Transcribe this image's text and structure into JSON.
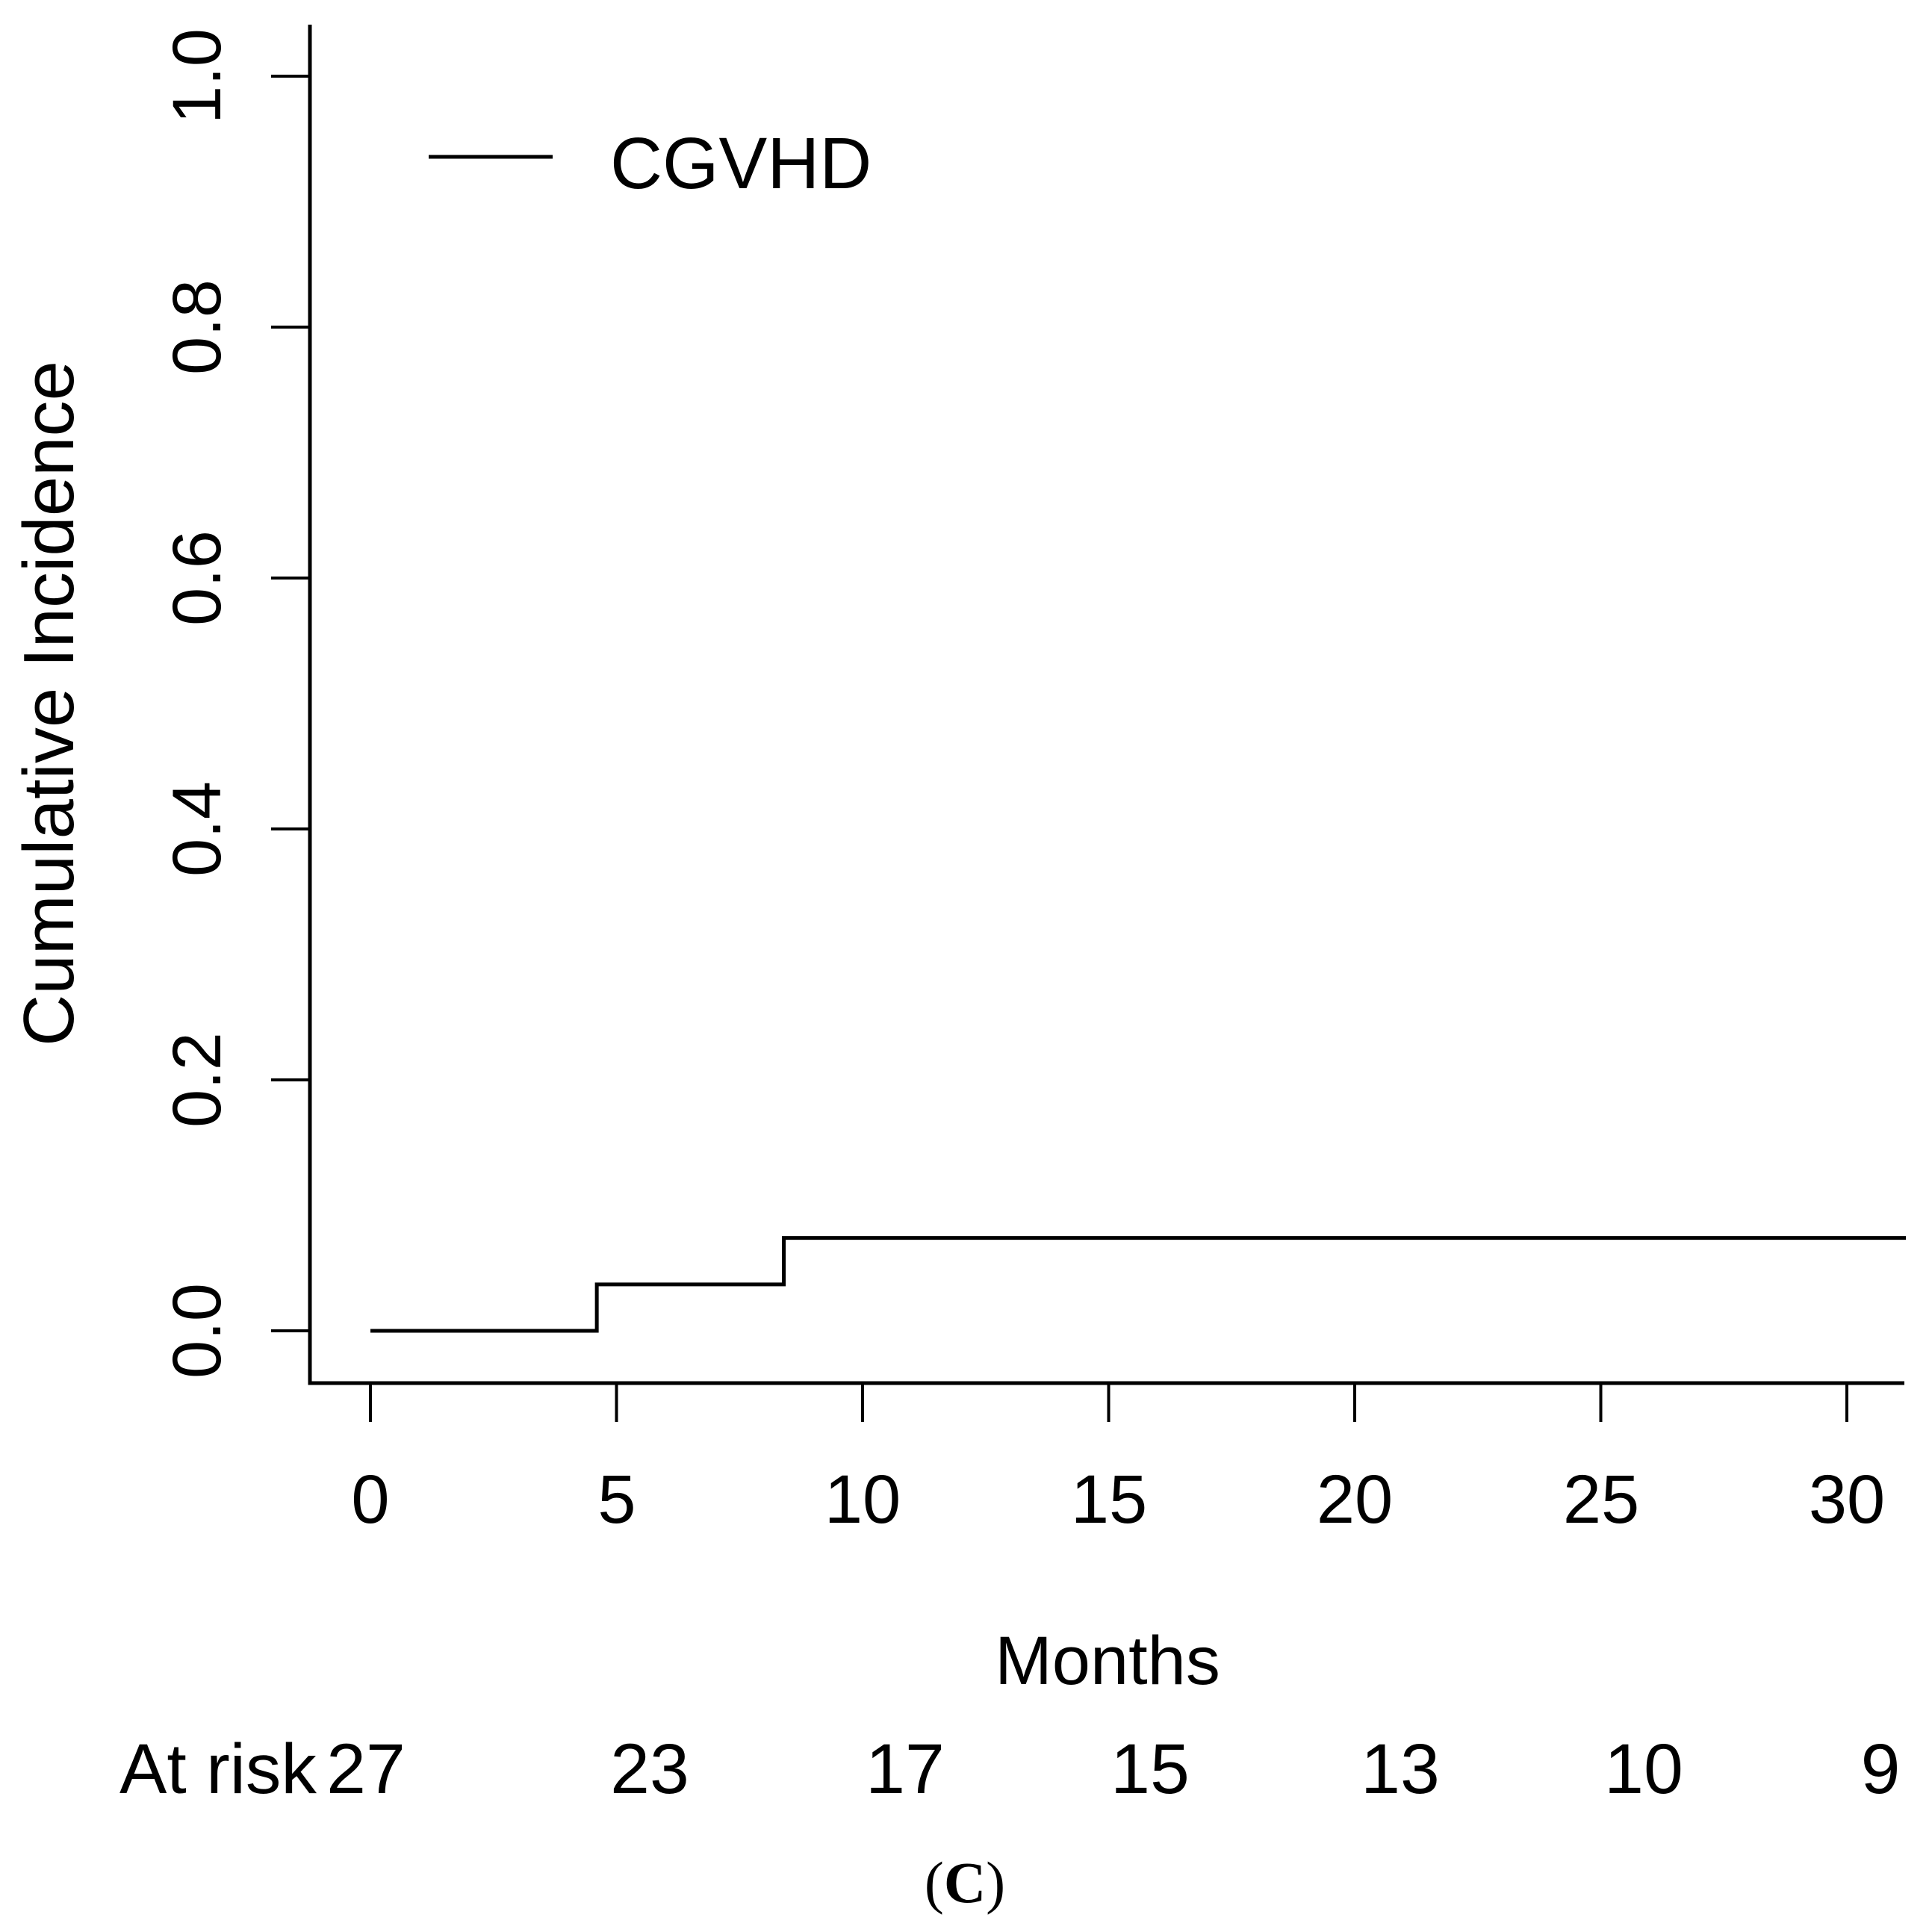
{
  "chart_data": {
    "type": "line",
    "subtype": "step-cumulative-incidence",
    "title": "",
    "xlabel": "Months",
    "ylabel": "Cumulative Incidence",
    "x_ticks": [
      "0",
      "5",
      "10",
      "15",
      "20",
      "25",
      "30"
    ],
    "x_tick_values": [
      0,
      5,
      10,
      15,
      20,
      25,
      30
    ],
    "y_ticks": [
      "0.0",
      "0.2",
      "0.4",
      "0.6",
      "0.8",
      "1.0"
    ],
    "y_tick_values": [
      0.0,
      0.2,
      0.4,
      0.6,
      0.8,
      1.0
    ],
    "xlim": [
      -1.2,
      31.2
    ],
    "ylim": [
      0.0,
      1.04
    ],
    "grid": false,
    "legend_position": "top-left-inside",
    "line_color": "#000000",
    "background_color": "#ffffff",
    "legend": [
      {
        "label": "CGVHD",
        "color": "#000000"
      }
    ],
    "series": [
      {
        "name": "CGVHD",
        "color": "#000000",
        "step_points": [
          {
            "x": 0.0,
            "y": 0.0
          },
          {
            "x": 4.6,
            "y": 0.0
          },
          {
            "x": 4.6,
            "y": 0.037
          },
          {
            "x": 8.4,
            "y": 0.037
          },
          {
            "x": 8.4,
            "y": 0.074
          },
          {
            "x": 31.2,
            "y": 0.074
          }
        ]
      }
    ],
    "at_risk": {
      "label": "At risk",
      "times": [
        0,
        5,
        10,
        15,
        20,
        25,
        30
      ],
      "values": [
        "27",
        "23",
        "17",
        "15",
        "13",
        "10",
        "9"
      ]
    },
    "caption": {
      "open": "(",
      "letter": "C",
      "close": ")"
    }
  }
}
